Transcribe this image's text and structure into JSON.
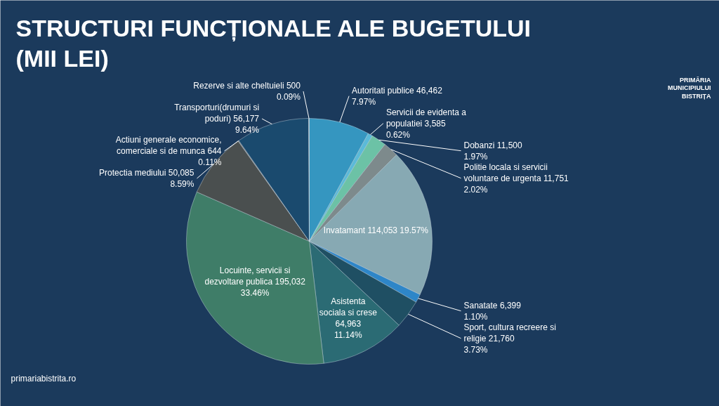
{
  "chart_data": {
    "type": "pie",
    "title": "STRUCTURI FUNCȚIONALE ALE BUGETULUI (MII LEI)",
    "categories": [
      "Autoritati publice",
      "Servicii de evidenta a populatiei",
      "Dobanzi",
      "Politie locala si servicii voluntare de urgenta",
      "Invatamant",
      "Sanatate",
      "Sport, cultura recreere si religie",
      "Asistenta sociala si crese",
      "Locuinte, servicii si dezvoltare publica",
      "Protectia mediului",
      "Actiuni generale economice, comerciale si de munca",
      "Transporturi(drumuri si poduri)",
      "Rezerve si alte cheltuieli"
    ],
    "values": [
      46462,
      3585,
      11500,
      11751,
      114053,
      6399,
      21760,
      64963,
      195032,
      50085,
      644,
      56177,
      500
    ],
    "value_labels": [
      "46,462\n7.97%",
      "3,585\n0.62%",
      "11,500\n1.97%",
      "11,751\n2.02%",
      "114,053 19.57%",
      "6,399\n1.10%",
      "21,760\n3.73%",
      "64,963\n11.14%",
      "195,032\n33.46%",
      "50,085 8.59%",
      "644\n0.11%",
      "56,177\n9.64%",
      "500\n0.09%"
    ],
    "colors": [
      "#3596c0",
      "#5bbad8",
      "#6cc2a6",
      "#7d8a8c",
      "#87a9b3",
      "#2e86c8",
      "#1f4f63",
      "#2b6b74",
      "#3f7d68",
      "#4a4f4f",
      "#777777",
      "#1a4a6e",
      "#a8cbd8"
    ],
    "annotations": [
      "primariabistrita.ro",
      "PRIMĂRIA MUNICIPIULUI BISTRIȚA"
    ]
  }
}
